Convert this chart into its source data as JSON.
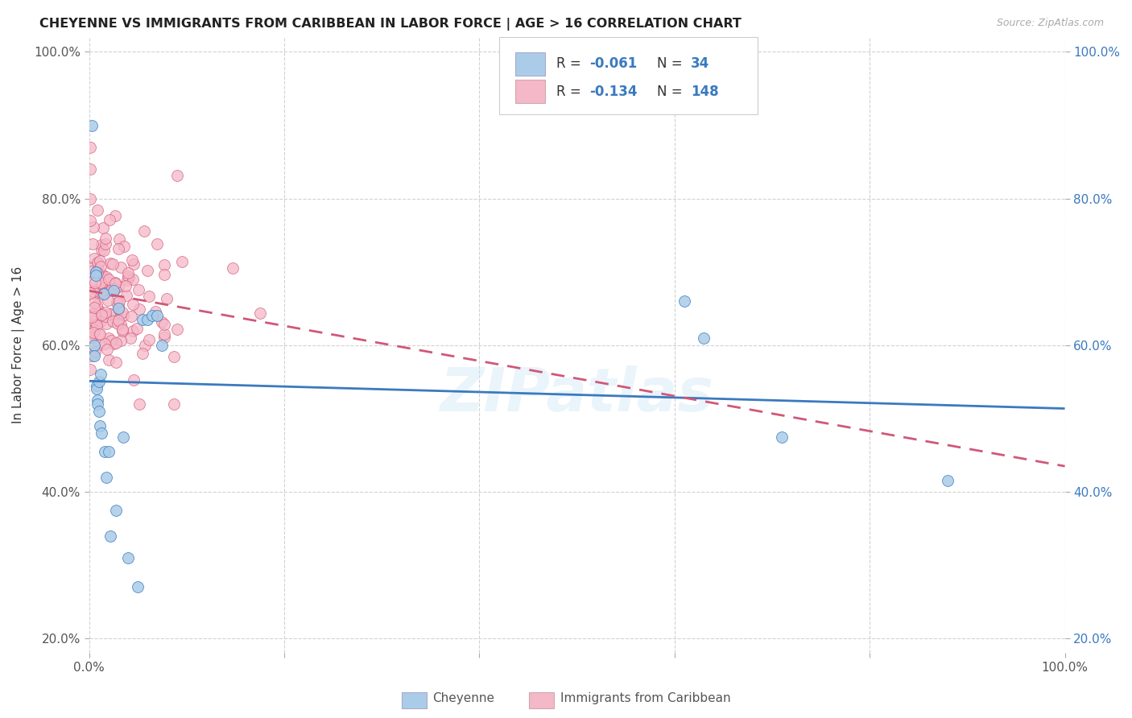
{
  "title": "CHEYENNE VS IMMIGRANTS FROM CARIBBEAN IN LABOR FORCE | AGE > 16 CORRELATION CHART",
  "source": "Source: ZipAtlas.com",
  "ylabel": "In Labor Force | Age > 16",
  "cheyenne_R": -0.061,
  "cheyenne_N": 34,
  "caribbean_R": -0.134,
  "caribbean_N": 148,
  "cheyenne_color": "#aacce8",
  "cheyenne_line_color": "#3a7abf",
  "caribbean_color": "#f5b8c8",
  "caribbean_line_color": "#d05878",
  "background_color": "#ffffff",
  "grid_color": "#cccccc",
  "legend_text_color": "#3a7abf",
  "watermark": "ZIPatlas",
  "cheyenne_x": [
    0.003,
    0.005,
    0.005,
    0.007,
    0.007,
    0.008,
    0.008,
    0.009,
    0.009,
    0.01,
    0.01,
    0.011,
    0.012,
    0.013,
    0.015,
    0.016,
    0.018,
    0.02,
    0.022,
    0.025,
    0.028,
    0.03,
    0.035,
    0.04,
    0.05,
    0.055,
    0.06,
    0.065,
    0.07,
    0.075,
    0.61,
    0.63,
    0.71,
    0.88
  ],
  "cheyenne_y": [
    0.9,
    0.6,
    0.585,
    0.7,
    0.695,
    0.545,
    0.54,
    0.525,
    0.52,
    0.55,
    0.51,
    0.49,
    0.56,
    0.48,
    0.67,
    0.455,
    0.42,
    0.455,
    0.34,
    0.675,
    0.375,
    0.65,
    0.475,
    0.31,
    0.27,
    0.635,
    0.635,
    0.64,
    0.64,
    0.6,
    0.66,
    0.61,
    0.475,
    0.415
  ],
  "xlim": [
    0.0,
    1.0
  ],
  "ylim": [
    0.18,
    1.02
  ],
  "yticks": [
    0.2,
    0.4,
    0.6,
    0.8,
    1.0
  ],
  "ytick_labels": [
    "20.0%",
    "40.0%",
    "60.0%",
    "80.0%",
    "100.0%"
  ],
  "xtick_labels_left": "0.0%",
  "xtick_labels_right": "100.0%"
}
